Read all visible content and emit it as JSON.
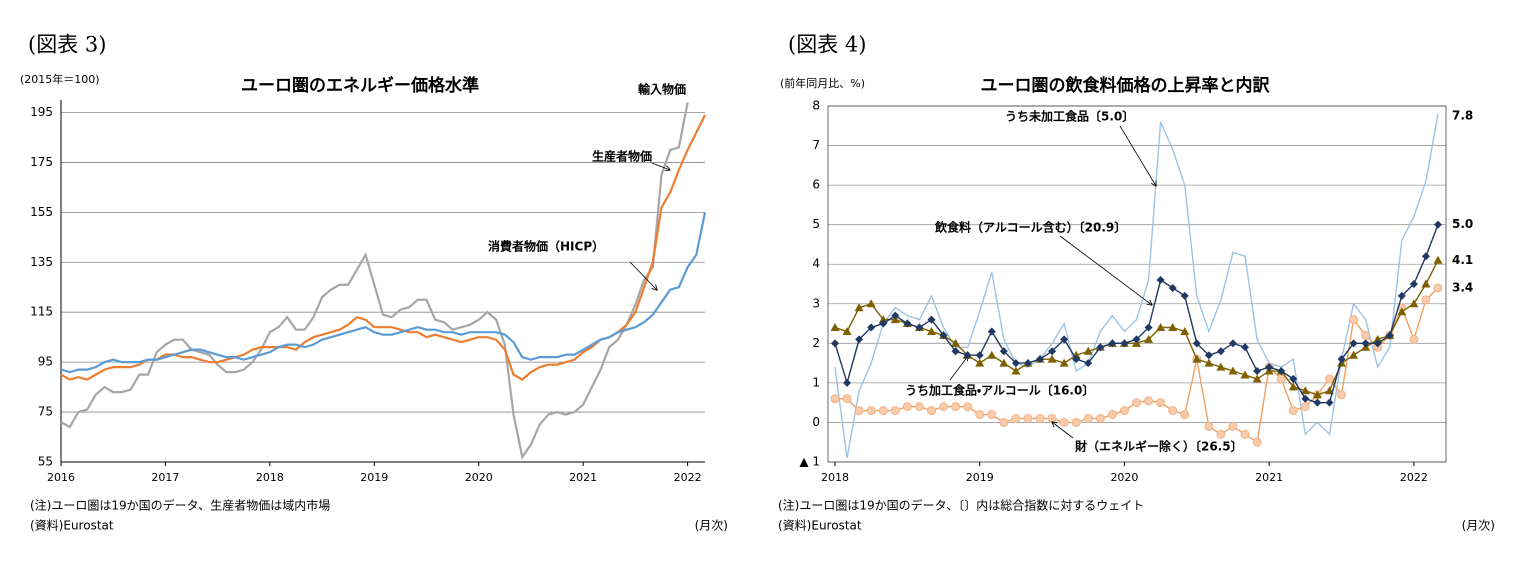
{
  "chart_data": [
    {
      "type": "line",
      "figure_label": "(図表 3)",
      "title": "ユーロ圏のエネルギー価格水準",
      "ylabel": "(2015年＝100)",
      "xlabel": "(月次)",
      "notes": [
        "(注)ユーロ圏は19か国のデータ、生産者物価は域内市場",
        "(資料)Eurostat"
      ],
      "categories": [
        "2016",
        null,
        null,
        null,
        null,
        null,
        null,
        null,
        null,
        null,
        null,
        null,
        "2017",
        null,
        null,
        null,
        null,
        null,
        null,
        null,
        null,
        null,
        null,
        null,
        "2018",
        null,
        null,
        null,
        null,
        null,
        null,
        null,
        null,
        null,
        null,
        null,
        "2019",
        null,
        null,
        null,
        null,
        null,
        null,
        null,
        null,
        null,
        null,
        null,
        "2020",
        null,
        null,
        null,
        null,
        null,
        null,
        null,
        null,
        null,
        null,
        null,
        "2021",
        null,
        null,
        null,
        null,
        null,
        null,
        null,
        null,
        null,
        null,
        null,
        "2022",
        null,
        null
      ],
      "ylim": [
        55,
        200
      ],
      "yticks": [
        55,
        75,
        95,
        115,
        135,
        155,
        175,
        195
      ],
      "grid": true,
      "series": [
        {
          "name": "輸入物価",
          "color": "#a6a6a6",
          "values": [
            71,
            69,
            75,
            76,
            82,
            85,
            83,
            83,
            84,
            90,
            90,
            99,
            102,
            104,
            104,
            100,
            99,
            98,
            94,
            91,
            91,
            92,
            95,
            100,
            107,
            109,
            113,
            108,
            108,
            113,
            121,
            124,
            126,
            126,
            132,
            138,
            126,
            114,
            113,
            116,
            117,
            120,
            120,
            112,
            111,
            108,
            109,
            110,
            112,
            115,
            112,
            102,
            74,
            57,
            62,
            70,
            74,
            75,
            74,
            75,
            78,
            85,
            92,
            101,
            104,
            110,
            118,
            128,
            133,
            170,
            180,
            181,
            199,
            null,
            null
          ]
        },
        {
          "name": "生産者物価",
          "color": "#ed7d31",
          "values": [
            90,
            88,
            89,
            88,
            90,
            92,
            93,
            93,
            93,
            94,
            96,
            96,
            98,
            98,
            97,
            97,
            96,
            95,
            95,
            96,
            97,
            98,
            100,
            101,
            101,
            101,
            101,
            100,
            103,
            105,
            106,
            107,
            108,
            110,
            113,
            112,
            109,
            109,
            109,
            108,
            107,
            107,
            105,
            106,
            105,
            104,
            103,
            104,
            105,
            105,
            104,
            100,
            90,
            88,
            91,
            93,
            94,
            94,
            95,
            96,
            99,
            101,
            104,
            105,
            107,
            110,
            115,
            125,
            135,
            157,
            163,
            172,
            180,
            187,
            194
          ]
        },
        {
          "name": "消費者物価（HICP）",
          "color": "#5b9bd5",
          "values": [
            92,
            91,
            92,
            92,
            93,
            95,
            96,
            95,
            95,
            95,
            96,
            96,
            97,
            98,
            99,
            100,
            100,
            99,
            98,
            97,
            97,
            96,
            97,
            98,
            99,
            101,
            102,
            102,
            101,
            102,
            104,
            105,
            106,
            107,
            108,
            109,
            107,
            106,
            106,
            107,
            108,
            109,
            108,
            108,
            107,
            107,
            106,
            107,
            107,
            107,
            107,
            106,
            103,
            97,
            96,
            97,
            97,
            97,
            98,
            98,
            100,
            102,
            104,
            105,
            107,
            108,
            109,
            111,
            114,
            119,
            124,
            125,
            133,
            138,
            155
          ]
        }
      ]
    },
    {
      "type": "line",
      "figure_label": "(図表 4)",
      "title": "ユーロ圏の飲食料価格の上昇率と内訳",
      "ylabel": "(前年同月比、%)",
      "xlabel": "(月次)",
      "notes": [
        "(注)ユーロ圏は19か国のデータ、〔〕内は総合指数に対するウェイト",
        "(資料)Eurostat"
      ],
      "categories": [
        "2018",
        null,
        null,
        null,
        null,
        null,
        null,
        null,
        null,
        null,
        null,
        null,
        "2019",
        null,
        null,
        null,
        null,
        null,
        null,
        null,
        null,
        null,
        null,
        null,
        "2020",
        null,
        null,
        null,
        null,
        null,
        null,
        null,
        null,
        null,
        null,
        null,
        "2021",
        null,
        null,
        null,
        null,
        null,
        null,
        null,
        null,
        null,
        null,
        null,
        "2022",
        null,
        null
      ],
      "ylim": [
        -1,
        8
      ],
      "yticks": [
        {
          "value": -1,
          "label": "▲ 1"
        },
        0,
        1,
        2,
        3,
        4,
        5,
        6,
        7,
        8
      ],
      "grid": true,
      "series": [
        {
          "name": "うち未加工食品〔5.0〕",
          "color": "#9dc3e6",
          "values": [
            1.4,
            -0.9,
            0.8,
            1.5,
            2.5,
            2.9,
            2.7,
            2.6,
            3.2,
            2.4,
            1.9,
            1.9,
            2.8,
            3.8,
            2.1,
            1.5,
            1.4,
            1.6,
            2.0,
            2.5,
            1.3,
            1.5,
            2.3,
            2.7,
            2.3,
            2.6,
            3.6,
            7.6,
            6.9,
            6.0,
            3.2,
            2.3,
            3.1,
            4.3,
            4.2,
            2.1,
            1.5,
            1.4,
            1.6,
            -0.3,
            0.0,
            -0.3,
            1.6,
            3.0,
            2.6,
            1.4,
            1.9,
            4.6,
            5.2,
            6.1,
            7.8
          ],
          "value_labels": [
            null,
            null,
            null,
            null,
            null,
            null,
            null,
            null,
            null,
            null,
            null,
            null,
            null,
            null,
            null,
            null,
            null,
            null,
            null,
            null,
            null,
            null,
            null,
            null,
            null,
            null,
            null,
            null,
            null,
            null,
            null,
            null,
            null,
            null,
            null,
            null,
            null,
            null,
            null,
            null,
            null,
            null,
            null,
            null,
            null,
            null,
            null,
            null,
            null,
            null,
            "7.8"
          ]
        },
        {
          "name": "財（エネルギー除く）〔26.5〕",
          "color": "#f0a060",
          "marker": "circle",
          "values": [
            0.6,
            0.6,
            0.3,
            0.3,
            0.3,
            0.3,
            0.4,
            0.4,
            0.3,
            0.4,
            0.4,
            0.4,
            0.2,
            0.2,
            0.0,
            0.1,
            0.1,
            0.1,
            0.1,
            0.0,
            0.0,
            0.1,
            0.1,
            0.2,
            0.3,
            0.5,
            0.55,
            0.5,
            0.3,
            0.2,
            1.6,
            -0.1,
            -0.3,
            -0.1,
            -0.3,
            -0.5,
            1.4,
            1.1,
            0.3,
            0.4,
            0.7,
            1.1,
            0.7,
            2.6,
            2.2,
            1.9,
            2.2,
            2.9,
            2.1,
            3.1,
            3.4
          ],
          "value_labels": [
            null,
            null,
            null,
            null,
            null,
            null,
            null,
            null,
            null,
            null,
            null,
            null,
            null,
            null,
            null,
            null,
            null,
            null,
            null,
            null,
            null,
            null,
            null,
            null,
            null,
            null,
            null,
            null,
            null,
            null,
            null,
            null,
            null,
            null,
            null,
            null,
            null,
            null,
            null,
            null,
            null,
            null,
            null,
            null,
            null,
            null,
            null,
            null,
            null,
            null,
            "3.4"
          ]
        },
        {
          "name": "うち加工食品・アルコール〔16.0〕",
          "color": "#7f6000",
          "marker": "triangle",
          "values": [
            2.4,
            2.3,
            2.9,
            3.0,
            2.6,
            2.6,
            2.5,
            2.4,
            2.3,
            2.2,
            2.0,
            1.7,
            1.5,
            1.7,
            1.5,
            1.3,
            1.5,
            1.6,
            1.6,
            1.5,
            1.7,
            1.8,
            1.9,
            2.0,
            2.0,
            2.0,
            2.1,
            2.4,
            2.4,
            2.3,
            1.6,
            1.5,
            1.4,
            1.3,
            1.2,
            1.1,
            1.3,
            1.3,
            0.9,
            0.8,
            0.7,
            0.8,
            1.5,
            1.7,
            1.9,
            2.1,
            2.2,
            2.8,
            3.0,
            3.5,
            4.1
          ],
          "value_labels": [
            null,
            null,
            null,
            null,
            null,
            null,
            null,
            null,
            null,
            null,
            null,
            null,
            null,
            null,
            null,
            null,
            null,
            null,
            null,
            null,
            null,
            null,
            null,
            null,
            null,
            null,
            null,
            null,
            null,
            null,
            null,
            null,
            null,
            null,
            null,
            null,
            null,
            null,
            null,
            null,
            null,
            null,
            null,
            null,
            null,
            null,
            null,
            null,
            null,
            null,
            "4.1"
          ]
        },
        {
          "name": "飲食料（アルコール含む）〔20.9〕",
          "color": "#1f3864",
          "marker": "diamond",
          "values": [
            2.0,
            1.0,
            2.1,
            2.4,
            2.5,
            2.7,
            2.5,
            2.4,
            2.6,
            2.2,
            1.8,
            1.7,
            1.7,
            2.3,
            1.8,
            1.5,
            1.5,
            1.6,
            1.8,
            2.1,
            1.6,
            1.5,
            1.9,
            2.0,
            2.0,
            2.1,
            2.4,
            3.6,
            3.4,
            3.2,
            2.0,
            1.7,
            1.8,
            2.0,
            1.9,
            1.3,
            1.4,
            1.3,
            1.1,
            0.6,
            0.5,
            0.5,
            1.6,
            2.0,
            2.0,
            2.0,
            2.2,
            3.2,
            3.5,
            4.2,
            5.0
          ],
          "value_labels": [
            null,
            null,
            null,
            null,
            null,
            null,
            null,
            null,
            null,
            null,
            null,
            null,
            null,
            null,
            null,
            null,
            null,
            null,
            null,
            null,
            null,
            null,
            null,
            null,
            null,
            null,
            null,
            null,
            null,
            null,
            null,
            null,
            null,
            null,
            null,
            null,
            null,
            null,
            null,
            null,
            null,
            null,
            null,
            null,
            null,
            null,
            null,
            null,
            null,
            null,
            "5.0"
          ]
        }
      ]
    }
  ]
}
